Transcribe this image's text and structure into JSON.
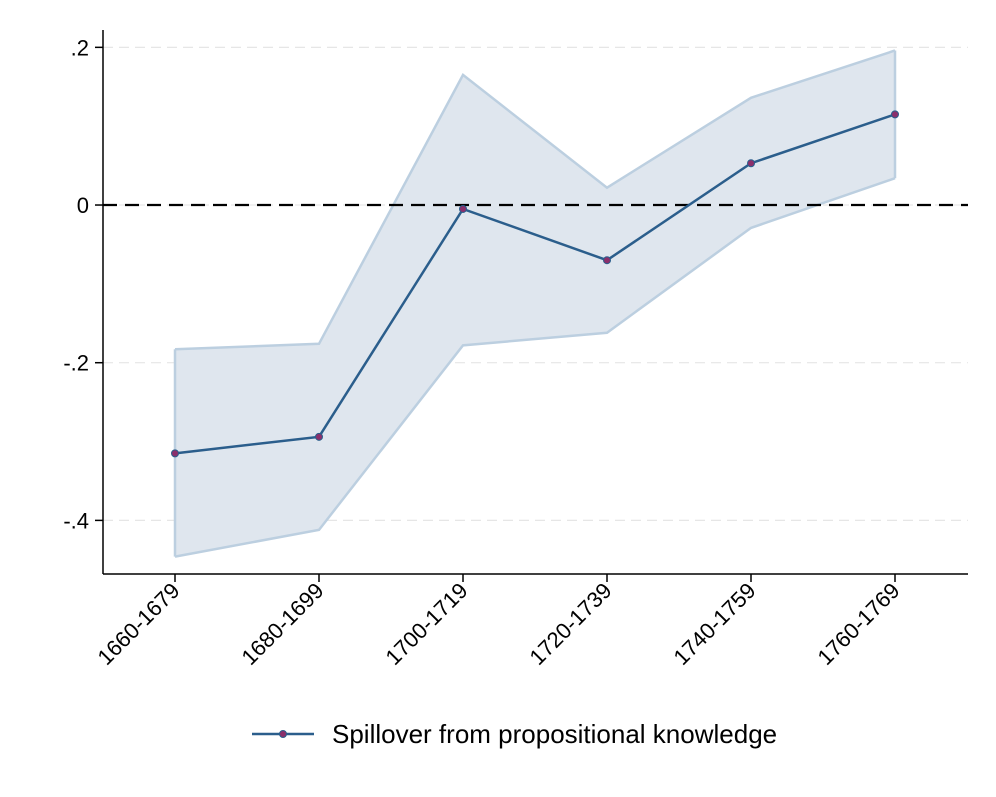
{
  "chart_data": {
    "type": "line",
    "categories": [
      "1660-1679",
      "1680-1699",
      "1700-1719",
      "1720-1739",
      "1740-1759",
      "1760-1769"
    ],
    "series": [
      {
        "name": "Spillover from propositional knowledge",
        "values": [
          -0.315,
          -0.294,
          -0.005,
          -0.07,
          0.053,
          0.115
        ],
        "ci_upper": [
          -0.183,
          -0.176,
          0.165,
          0.022,
          0.136,
          0.196
        ],
        "ci_lower": [
          -0.446,
          -0.412,
          -0.178,
          -0.162,
          -0.029,
          0.034
        ],
        "color": "#2b5e8c",
        "marker_color": "#8b2f6b",
        "ci_color": "#dfe6ee",
        "ci_edge_color": "#bccfe0"
      }
    ],
    "yticks": [
      ".2",
      "0",
      "-.2",
      "-.4"
    ],
    "ytick_values": [
      0.2,
      0,
      -0.2,
      -0.4
    ],
    "ylim": [
      -0.468,
      0.222
    ],
    "reference_line": {
      "y": 0,
      "style": "dashed",
      "color": "#000000"
    },
    "grid": "horizontal dashed",
    "legend_position": "bottom-center",
    "title": "",
    "xlabel": "",
    "ylabel": ""
  }
}
